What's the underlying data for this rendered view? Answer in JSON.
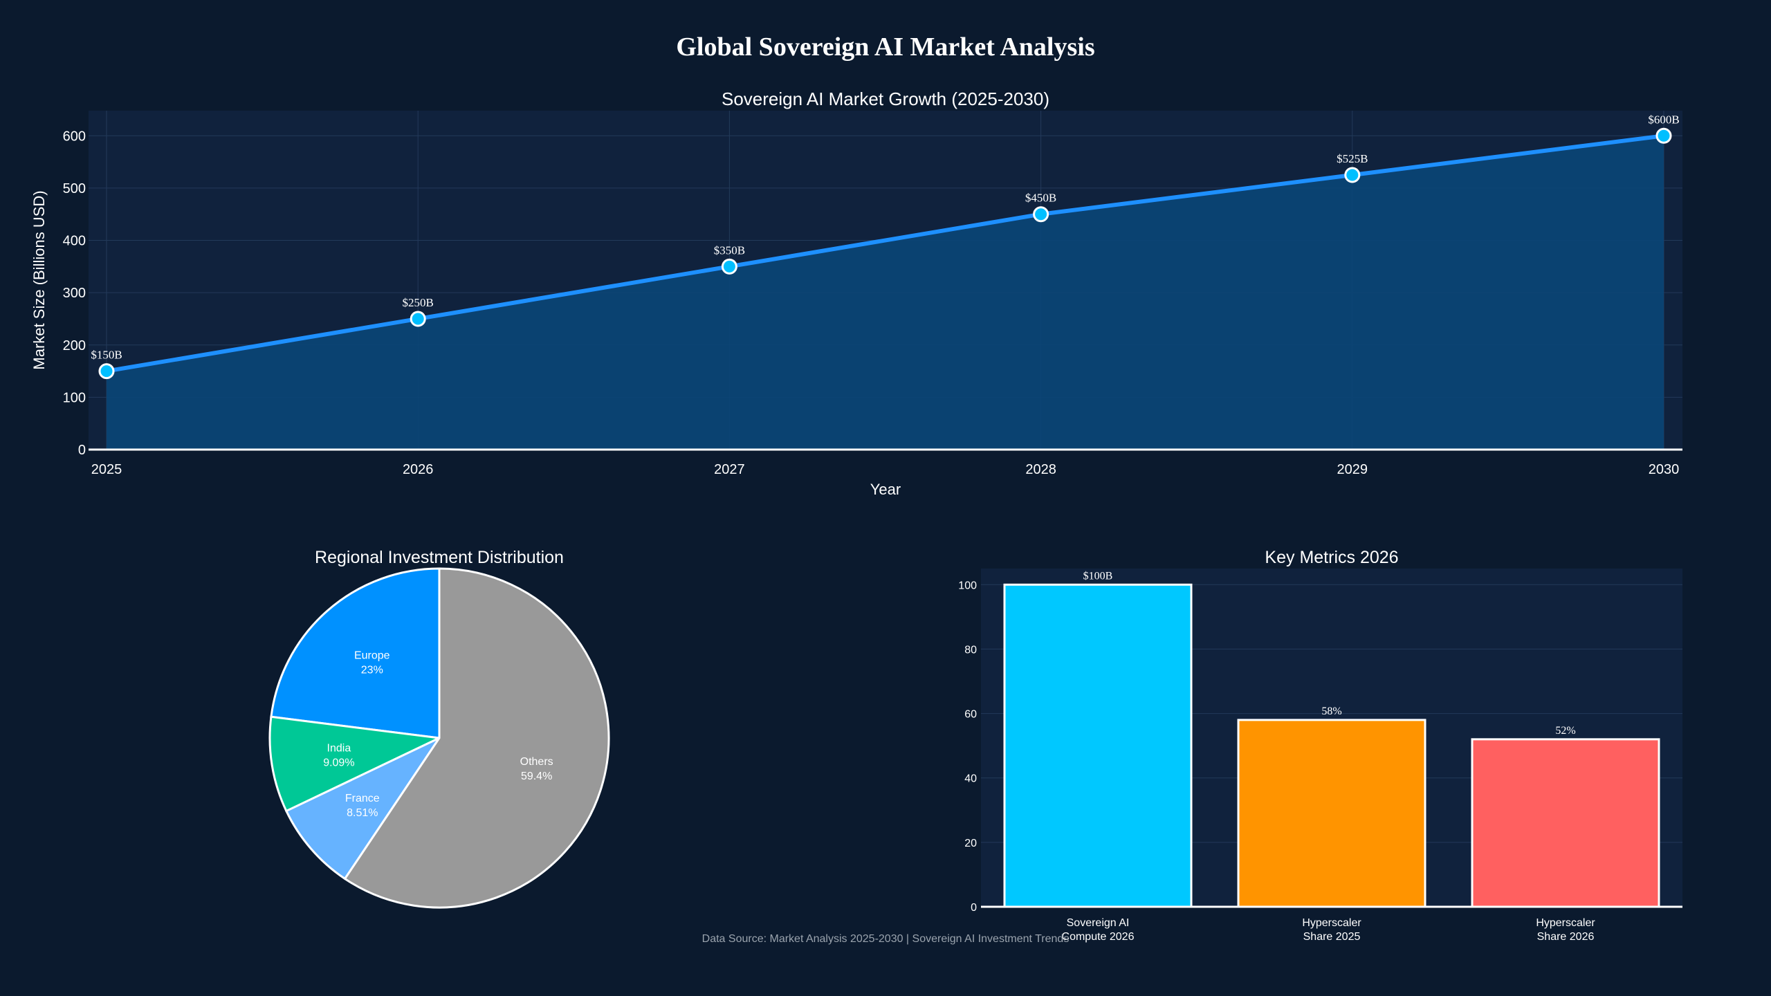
{
  "page": {
    "title": "Global Sovereign AI Market Analysis",
    "footer": "Data Source: Market Analysis 2025-2030 | Sovereign AI Investment Trends"
  },
  "colors": {
    "background": "#0b1a2e",
    "plot_bg": "#10223d",
    "line": "#1e90ff",
    "area": "#0a4677",
    "marker": "#00bfff",
    "grid": "#233a5a"
  },
  "chart_data": [
    {
      "type": "area",
      "title": "Sovereign AI Market Growth (2025-2030)",
      "xlabel": "Year",
      "ylabel": "Market Size (Billions USD)",
      "x": [
        2025,
        2026,
        2027,
        2028,
        2029,
        2030
      ],
      "y": [
        150,
        250,
        350,
        450,
        525,
        600
      ],
      "data_labels": [
        "$150B",
        "$250B",
        "$350B",
        "$450B",
        "$525B",
        "$600B"
      ],
      "xlim": [
        2025,
        2030
      ],
      "ylim": [
        0,
        648
      ],
      "yticks": [
        0,
        100,
        200,
        300,
        400,
        500,
        600
      ],
      "grid": true
    },
    {
      "type": "pie",
      "title": "Regional Investment Distribution",
      "labels": [
        "Europe",
        "India",
        "France",
        "Others"
      ],
      "values": [
        23,
        9.09,
        8.51,
        59.4
      ],
      "value_labels": [
        "23%",
        "9.09%",
        "8.51%",
        "59.4%"
      ],
      "colors": [
        "#0091ff",
        "#00c896",
        "#66b3ff",
        "#999999"
      ]
    },
    {
      "type": "bar",
      "title": "Key Metrics 2026",
      "categories": [
        "Sovereign AI\nCompute 2026",
        "Hyperscaler\nShare 2025",
        "Hyperscaler\nShare 2026"
      ],
      "values": [
        100,
        58,
        52
      ],
      "data_labels": [
        "$100B",
        "58%",
        "52%"
      ],
      "colors": [
        "#00c8ff",
        "#ff9400",
        "#ff6060"
      ],
      "ylim": [
        0,
        105
      ],
      "yticks": [
        0,
        20,
        40,
        60,
        80,
        100
      ],
      "grid": true
    }
  ]
}
